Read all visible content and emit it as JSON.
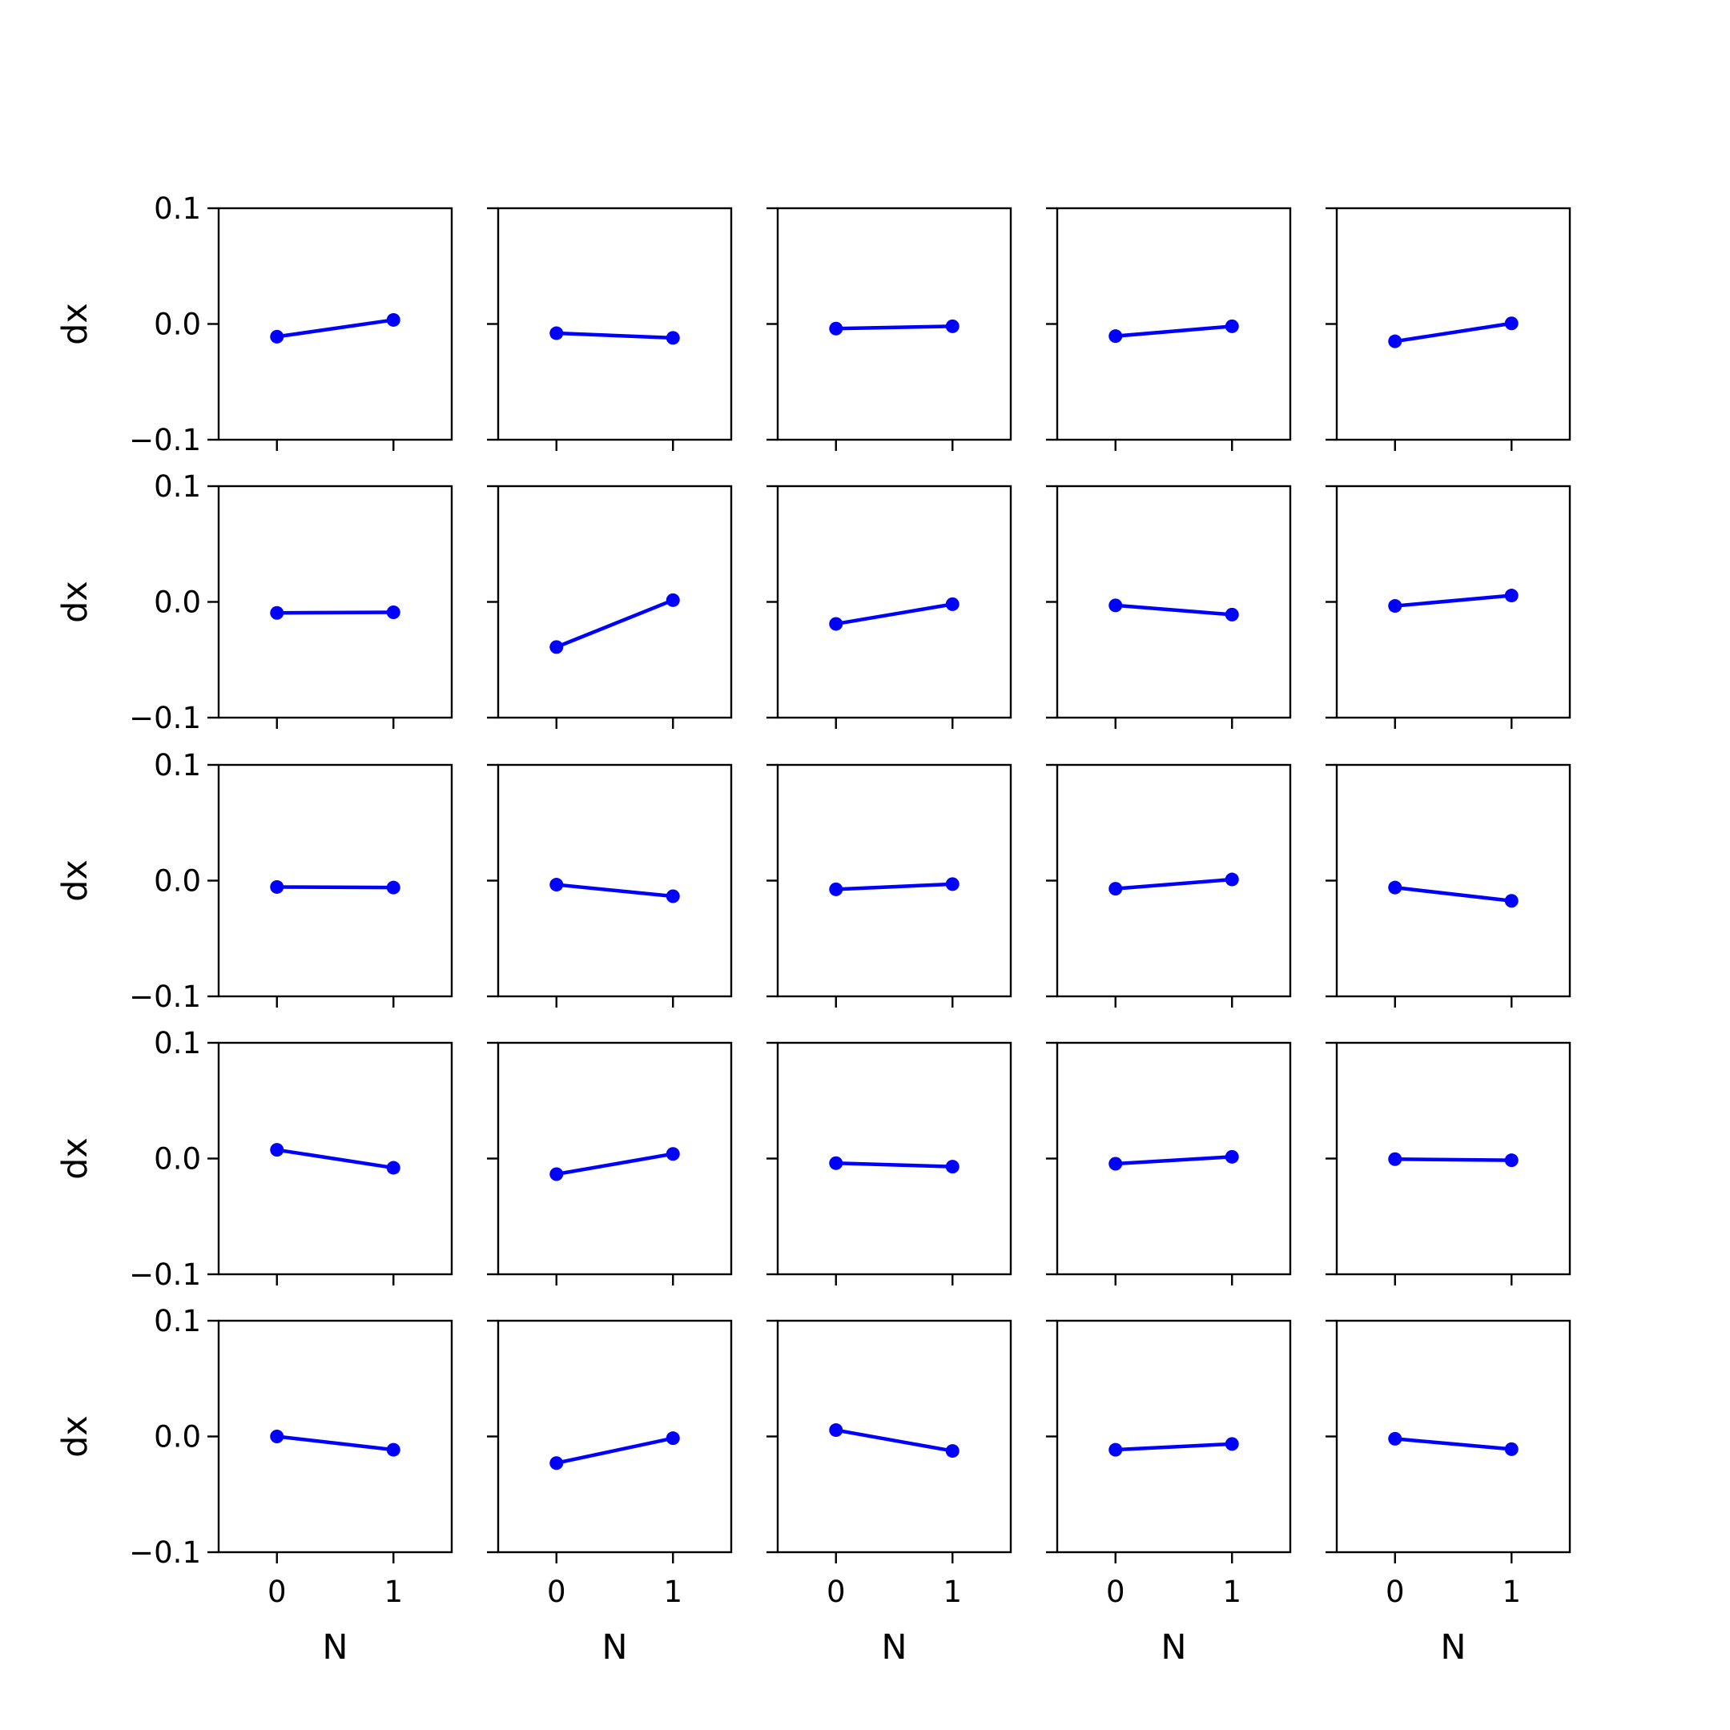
{
  "figure": {
    "xlabel": "N",
    "ylabel": "dx",
    "rows": 5,
    "cols": 5
  },
  "chart_data": {
    "type": "line",
    "xlim": [
      -0.5,
      1.5
    ],
    "ylim": [
      -0.1,
      0.1
    ],
    "xticks": [
      0,
      1
    ],
    "xtick_labels": [
      "0",
      "1"
    ],
    "yticks": [
      0.1,
      0.0,
      -0.1
    ],
    "ytick_labels": [
      "0.1",
      "0.0",
      "−0.1"
    ],
    "line_color": "#0000ff",
    "marker": "circle",
    "grid": false,
    "subplots": [
      {
        "row": 0,
        "col": 0,
        "x": [
          0,
          1
        ],
        "y": [
          -0.011,
          0.0035
        ]
      },
      {
        "row": 0,
        "col": 1,
        "x": [
          0,
          1
        ],
        "y": [
          -0.008,
          -0.012
        ]
      },
      {
        "row": 0,
        "col": 2,
        "x": [
          0,
          1
        ],
        "y": [
          -0.004,
          -0.002
        ]
      },
      {
        "row": 0,
        "col": 3,
        "x": [
          0,
          1
        ],
        "y": [
          -0.0105,
          -0.002
        ]
      },
      {
        "row": 0,
        "col": 4,
        "x": [
          0,
          1
        ],
        "y": [
          -0.015,
          0.0005
        ]
      },
      {
        "row": 1,
        "col": 0,
        "x": [
          0,
          1
        ],
        "y": [
          -0.0095,
          -0.009
        ]
      },
      {
        "row": 1,
        "col": 1,
        "x": [
          0,
          1
        ],
        "y": [
          -0.039,
          0.0015
        ]
      },
      {
        "row": 1,
        "col": 2,
        "x": [
          0,
          1
        ],
        "y": [
          -0.019,
          -0.002
        ]
      },
      {
        "row": 1,
        "col": 3,
        "x": [
          0,
          1
        ],
        "y": [
          -0.003,
          -0.011
        ]
      },
      {
        "row": 1,
        "col": 4,
        "x": [
          0,
          1
        ],
        "y": [
          -0.0035,
          0.0055
        ]
      },
      {
        "row": 2,
        "col": 0,
        "x": [
          0,
          1
        ],
        "y": [
          -0.0055,
          -0.006
        ]
      },
      {
        "row": 2,
        "col": 1,
        "x": [
          0,
          1
        ],
        "y": [
          -0.0035,
          -0.0135
        ]
      },
      {
        "row": 2,
        "col": 2,
        "x": [
          0,
          1
        ],
        "y": [
          -0.0075,
          -0.003
        ]
      },
      {
        "row": 2,
        "col": 3,
        "x": [
          0,
          1
        ],
        "y": [
          -0.007,
          0.001
        ]
      },
      {
        "row": 2,
        "col": 4,
        "x": [
          0,
          1
        ],
        "y": [
          -0.006,
          -0.0175
        ]
      },
      {
        "row": 3,
        "col": 0,
        "x": [
          0,
          1
        ],
        "y": [
          0.0075,
          -0.008
        ]
      },
      {
        "row": 3,
        "col": 1,
        "x": [
          0,
          1
        ],
        "y": [
          -0.0135,
          0.004
        ]
      },
      {
        "row": 3,
        "col": 2,
        "x": [
          0,
          1
        ],
        "y": [
          -0.004,
          -0.007
        ]
      },
      {
        "row": 3,
        "col": 3,
        "x": [
          0,
          1
        ],
        "y": [
          -0.0045,
          0.0015
        ]
      },
      {
        "row": 3,
        "col": 4,
        "x": [
          0,
          1
        ],
        "y": [
          -0.0005,
          -0.0015
        ]
      },
      {
        "row": 4,
        "col": 0,
        "x": [
          0,
          1
        ],
        "y": [
          0.0,
          -0.0115
        ]
      },
      {
        "row": 4,
        "col": 1,
        "x": [
          0,
          1
        ],
        "y": [
          -0.023,
          -0.0015
        ]
      },
      {
        "row": 4,
        "col": 2,
        "x": [
          0,
          1
        ],
        "y": [
          0.0055,
          -0.0125
        ]
      },
      {
        "row": 4,
        "col": 3,
        "x": [
          0,
          1
        ],
        "y": [
          -0.0115,
          -0.0065
        ]
      },
      {
        "row": 4,
        "col": 4,
        "x": [
          0,
          1
        ],
        "y": [
          -0.002,
          -0.011
        ]
      }
    ]
  }
}
